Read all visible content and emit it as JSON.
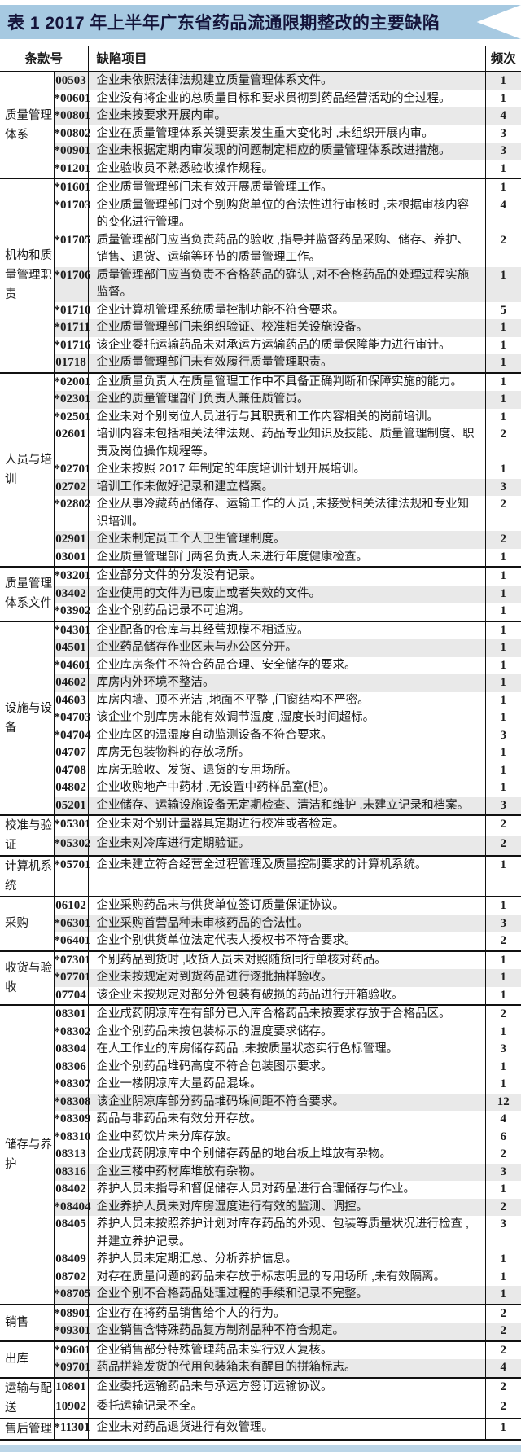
{
  "title": "表 1  2017 年上半年广东省药品流通限期整改的主要缺陷",
  "header": {
    "clause_col": "条款号",
    "defect_col": "缺陷项目",
    "freq_col": "频次"
  },
  "colors": {
    "banner-blue": "#a6c9e1",
    "bar-blue": "#bcd6e8",
    "shade-gray": "#e9e9e9",
    "line-black": "#111111",
    "title-dark": "#14143a"
  },
  "groups": [
    {
      "category": "质量管理体系",
      "rows": [
        {
          "code": "00503",
          "defect": "企业未依照法律法规建立质量管理体系文件。",
          "freq": "1",
          "shaded": true
        },
        {
          "code": "*00601",
          "defect": "企业没有将企业的总质量目标和要求贯彻到药品经营活动的全过程。",
          "freq": "1",
          "shaded": false
        },
        {
          "code": "*00801",
          "defect": "企业未按要求开展内审。",
          "freq": "4",
          "shaded": true
        },
        {
          "code": "*00802",
          "defect": "企业在质量管理体系关键要素发生重大变化时 ,未组织开展内审。",
          "freq": "3",
          "shaded": false
        },
        {
          "code": "*00901",
          "defect": "企业未根据定期内审发现的问题制定相应的质量管理体系改进措施。",
          "freq": "3",
          "shaded": true
        },
        {
          "code": "*01201",
          "defect": "企业验收员不熟悉验收操作规程。",
          "freq": "1",
          "shaded": false
        }
      ]
    },
    {
      "category": "机构和质量管理职责",
      "rows": [
        {
          "code": "*01601",
          "defect": "企业质量管理部门未有效开展质量管理工作。",
          "freq": "1",
          "shaded": false
        },
        {
          "code": "*01703",
          "defect": "企业质量管理部门对个别购货单位的合法性进行审核时 ,未根据审核内容的变化进行管理。",
          "freq": "4",
          "shaded": false
        },
        {
          "code": "*01705",
          "defect": "质量管理部门应当负责药品的验收 ,指导并监督药品采购、储存、养护、销售、退货、运输等环节的质量管理工作。",
          "freq": "2",
          "shaded": false
        },
        {
          "code": "*01706",
          "defect": "质量管理部门应当负责不合格药品的确认 ,对不合格药品的处理过程实施监督。",
          "freq": "1",
          "shaded": true
        },
        {
          "code": "*01710",
          "defect": "企业计算机管理系统质量控制功能不符合要求。",
          "freq": "5",
          "shaded": false
        },
        {
          "code": "*01711",
          "defect": "企业质量管理部门未组织验证、校准相关设施设备。",
          "freq": "1",
          "shaded": true
        },
        {
          "code": "*01716",
          "defect": "该企业委托运输药品未对承运方运输药品的质量保障能力进行审计。",
          "freq": "1",
          "shaded": false
        },
        {
          "code": "01718",
          "defect": "企业质量管理部门未有效履行质量管理职责。",
          "freq": "1",
          "shaded": true
        }
      ]
    },
    {
      "category": "人员与培训",
      "rows": [
        {
          "code": "*02001",
          "defect": "企业质量负责人在质量管理工作中不具备正确判断和保障实施的能力。",
          "freq": "1",
          "shaded": false
        },
        {
          "code": "*02301",
          "defect": "企业的质量管理部门负责人兼任质管员。",
          "freq": "1",
          "shaded": true
        },
        {
          "code": "*02501",
          "defect": "企业未对个别岗位人员进行与其职责和工作内容相关的岗前培训。",
          "freq": "1",
          "shaded": false
        },
        {
          "code": "02601",
          "defect": "培训内容未包括相关法律法规、药品专业知识及技能、质量管理制度、职责及岗位操作规程等。",
          "freq": "2",
          "shaded": false
        },
        {
          "code": "*02701",
          "defect": "企业未按照 2017 年制定的年度培训计划开展培训。",
          "freq": "1",
          "shaded": false
        },
        {
          "code": "02702",
          "defect": "培训工作未做好记录和建立档案。",
          "freq": "3",
          "shaded": true
        },
        {
          "code": "*02802",
          "defect": "企业从事冷藏药品储存、运输工作的人员 ,未接受相关法律法规和专业知识培训。",
          "freq": "2",
          "shaded": false
        },
        {
          "code": "02901",
          "defect": "企业未制定员工个人卫生管理制度。",
          "freq": "2",
          "shaded": true
        },
        {
          "code": "03001",
          "defect": "企业质量管理部门两名负责人未进行年度健康检查。",
          "freq": "1",
          "shaded": false
        }
      ]
    },
    {
      "category": "质量管理体系文件",
      "rows": [
        {
          "code": "*03201",
          "defect": "企业部分文件的分发没有记录。",
          "freq": "1",
          "shaded": false
        },
        {
          "code": "03402",
          "defect": "企业使用的文件为已废止或者失效的文件。",
          "freq": "1",
          "shaded": true
        },
        {
          "code": "*03902",
          "defect": "企业个别药品记录不可追溯。",
          "freq": "1",
          "shaded": false
        }
      ]
    },
    {
      "category": "设施与设备",
      "rows": [
        {
          "code": "*04301",
          "defect": "企业配备的仓库与其经营规模不相适应。",
          "freq": "1",
          "shaded": false
        },
        {
          "code": "04501",
          "defect": "企业药品储存作业区未与办公区分开。",
          "freq": "1",
          "shaded": true
        },
        {
          "code": "*04601",
          "defect": "企业库房条件不符合药品合理、安全储存的要求。",
          "freq": "1",
          "shaded": false
        },
        {
          "code": "04602",
          "defect": "库房内外环境不整洁。",
          "freq": "1",
          "shaded": true
        },
        {
          "code": "04603",
          "defect": "库房内墙、顶不光洁 ,地面不平整 ,门窗结构不严密。",
          "freq": "1",
          "shaded": false
        },
        {
          "code": "*04703",
          "defect": "该企业个别库房未能有效调节湿度 ,湿度长时间超标。",
          "freq": "1",
          "shaded": false
        },
        {
          "code": "*04704",
          "defect": "企业库区的温湿度自动监测设备不符合要求。",
          "freq": "3",
          "shaded": false
        },
        {
          "code": "04707",
          "defect": "库房无包装物料的存放场所。",
          "freq": "1",
          "shaded": false
        },
        {
          "code": "04708",
          "defect": "库房无验收、发货、退货的专用场所。",
          "freq": "1",
          "shaded": false
        },
        {
          "code": "04802",
          "defect": "企业收购地产中药材 ,无设置中药样品室(柜)。",
          "freq": "1",
          "shaded": false
        },
        {
          "code": "05201",
          "defect": "企业储存、运输设施设备无定期检查、清洁和维护 ,未建立记录和档案。",
          "freq": "3",
          "shaded": true
        }
      ]
    },
    {
      "category": "校准与验证",
      "rows": [
        {
          "code": "*05301",
          "defect": "企业未对个别计量器具定期进行校准或者检定。",
          "freq": "2",
          "shaded": false
        },
        {
          "code": "*05302",
          "defect": "企业未对冷库进行定期验证。",
          "freq": "2",
          "shaded": true
        }
      ]
    },
    {
      "category": "计算机系统",
      "rows": [
        {
          "code": "*05701",
          "defect": "企业未建立符合经营全过程管理及质量控制要求的计算机系统。",
          "freq": "1",
          "shaded": false
        }
      ]
    },
    {
      "category": "采购",
      "rows": [
        {
          "code": "06102",
          "defect": "企业采购药品未与供货单位签订质量保证协议。",
          "freq": "1",
          "shaded": false
        },
        {
          "code": "*06301",
          "defect": "企业采购首营品种未审核药品的合法性。",
          "freq": "3",
          "shaded": true
        },
        {
          "code": "*06401",
          "defect": "企业个别供货单位法定代表人授权书不符合要求。",
          "freq": "2",
          "shaded": false
        }
      ]
    },
    {
      "category": "收货与验收",
      "rows": [
        {
          "code": "*07301",
          "defect": "个别药品到货时 ,收货人员未对照随货同行单核对药品。",
          "freq": "1",
          "shaded": false
        },
        {
          "code": "*07701",
          "defect": "企业未按规定对到货药品进行逐批抽样验收。",
          "freq": "1",
          "shaded": true
        },
        {
          "code": "07704",
          "defect": "该企业未按规定对部分外包装有破损的药品进行开箱验收。",
          "freq": "1",
          "shaded": false
        }
      ]
    },
    {
      "category": "储存与养护",
      "rows": [
        {
          "code": "08301",
          "defect": "企业成药阴凉库在有部分已入库合格药品未按要求存放于合格品区。",
          "freq": "2",
          "shaded": false
        },
        {
          "code": "*08302",
          "defect": "企业个别药品未按包装标示的温度要求储存。",
          "freq": "1",
          "shaded": false
        },
        {
          "code": "08304",
          "defect": "在人工作业的库房储存药品 ,未按质量状态实行色标管理。",
          "freq": "3",
          "shaded": false
        },
        {
          "code": "08306",
          "defect": "企业个别药品堆码高度不符合包装图示要求。",
          "freq": "1",
          "shaded": false
        },
        {
          "code": "*08307",
          "defect": "企业一楼阴凉库大量药品混垛。",
          "freq": "1",
          "shaded": false
        },
        {
          "code": "*08308",
          "defect": "该企业阴凉库部分药品堆码垛间距不符合要求。",
          "freq": "12",
          "shaded": true
        },
        {
          "code": "*08309",
          "defect": "药品与非药品未有效分开存放。",
          "freq": "4",
          "shaded": false
        },
        {
          "code": "*08310",
          "defect": "企业中药饮片未分库存放。",
          "freq": "6",
          "shaded": false
        },
        {
          "code": "08313",
          "defect": "企业成药阴凉库中个别储存药品的地台板上堆放有杂物。",
          "freq": "2",
          "shaded": false
        },
        {
          "code": "08316",
          "defect": "企业三楼中药材库堆放有杂物。",
          "freq": "3",
          "shaded": true
        },
        {
          "code": "08402",
          "defect": "养护人员未指导和督促储存人员对药品进行合理储存与作业。",
          "freq": "1",
          "shaded": false
        },
        {
          "code": "*08404",
          "defect": "企业养护人员未对库房湿度进行有效的监测、调控。",
          "freq": "2",
          "shaded": true
        },
        {
          "code": "08405",
          "defect": "养护人员未按照养护计划对库存药品的外观、包装等质量状况进行检查 ,并建立养护记录。",
          "freq": "3",
          "shaded": false
        },
        {
          "code": "08409",
          "defect": "养护人员未定期汇总、分析养护信息。",
          "freq": "1",
          "shaded": false
        },
        {
          "code": "08702",
          "defect": "对存在质量问题的药品未存放于标志明显的专用场所 ,未有效隔离。",
          "freq": "1",
          "shaded": false
        },
        {
          "code": "*08705",
          "defect": "企业个别不合格药品处理过程的手续和记录不完整。",
          "freq": "1",
          "shaded": true
        }
      ]
    },
    {
      "category": "销售",
      "rows": [
        {
          "code": "*08901",
          "defect": "企业存在将药品销售给个人的行为。",
          "freq": "2",
          "shaded": false
        },
        {
          "code": "*09301",
          "defect": "企业销售含特殊药品复方制剂品种不符合规定。",
          "freq": "2",
          "shaded": true
        }
      ]
    },
    {
      "category": "出库",
      "rows": [
        {
          "code": "*09601",
          "defect": "企业销售部分特殊管理药品未实行双人复核。",
          "freq": "2",
          "shaded": false
        },
        {
          "code": "*09701",
          "defect": "药品拼箱发货的代用包装箱未有醒目的拼箱标志。",
          "freq": "4",
          "shaded": true
        }
      ]
    },
    {
      "category": "运输与配送",
      "rows": [
        {
          "code": "10801",
          "defect": "企业委托运输药品未与承运方签订运输协议。",
          "freq": "2",
          "shaded": false
        },
        {
          "code": "10902",
          "defect": "委托运输记录不全。",
          "freq": "2",
          "shaded": false
        }
      ]
    },
    {
      "category": "售后管理",
      "rows": [
        {
          "code": "*11301",
          "defect": "企业未对药品退货进行有效管理。",
          "freq": "1",
          "shaded": false
        }
      ]
    }
  ]
}
